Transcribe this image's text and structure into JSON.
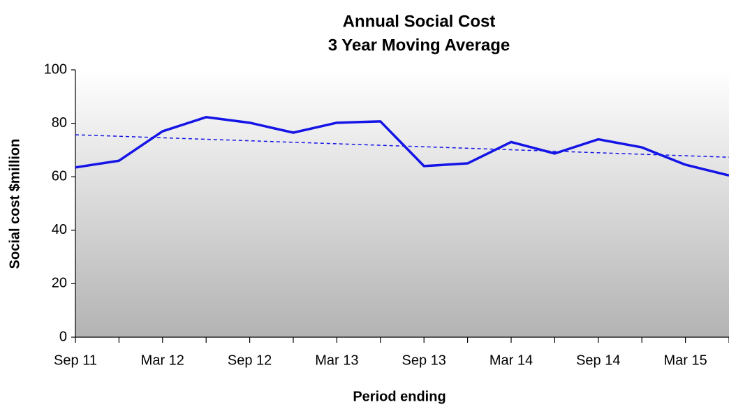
{
  "chart_data": {
    "type": "line",
    "title": "Annual Social Cost",
    "subtitle": "3 Year Moving Average",
    "x_label": "Period ending",
    "y_label": "Social cost  $million",
    "categories": [
      "Sep 11",
      null,
      "Mar 12",
      null,
      "Sep 12",
      null,
      "Mar 13",
      null,
      "Sep 13",
      null,
      "Mar 14",
      null,
      "Sep 14",
      null,
      "Mar 15",
      null
    ],
    "series": [
      {
        "color": "#1414e6",
        "values": [
          63.5,
          66,
          77,
          82.3,
          80.2,
          76.5,
          80.2,
          80.7,
          64,
          65,
          73,
          68.7,
          74,
          71,
          64.5,
          60.5
        ]
      }
    ],
    "trendline": {
      "color": "#1414e6",
      "values": [
        75.7,
        67.3
      ]
    },
    "ylim": [
      0,
      100
    ],
    "yticks": [
      0,
      20,
      40,
      60,
      80,
      100
    ]
  }
}
